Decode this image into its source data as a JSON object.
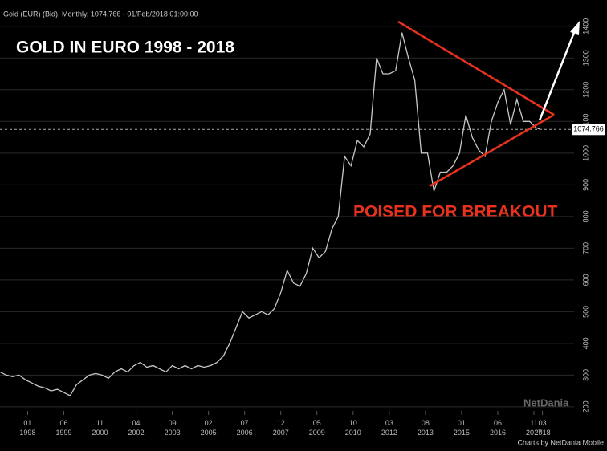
{
  "header": "Gold (EUR) (Bid), Monthly, 1074.766 - 01/Feb/2018 01:00:00",
  "chart_data": {
    "type": "line",
    "title": "GOLD IN EURO 1998 - 2018",
    "annotation": "POISED FOR BREAKOUT",
    "x": [
      "1996-12",
      "1997-03",
      "1997-06",
      "1997-09",
      "1997-12",
      "1998-03",
      "1998-06",
      "1998-09",
      "1998-12",
      "1999-03",
      "1999-06",
      "1999-09",
      "1999-12",
      "2000-03",
      "2000-06",
      "2000-09",
      "2000-12",
      "2001-03",
      "2001-06",
      "2001-09",
      "2001-12",
      "2002-03",
      "2002-06",
      "2002-09",
      "2002-12",
      "2003-03",
      "2003-06",
      "2003-09",
      "2003-12",
      "2004-03",
      "2004-06",
      "2004-09",
      "2004-12",
      "2005-03",
      "2005-06",
      "2005-09",
      "2005-12",
      "2006-03",
      "2006-06",
      "2006-09",
      "2006-12",
      "2007-03",
      "2007-06",
      "2007-09",
      "2007-12",
      "2008-03",
      "2008-06",
      "2008-09",
      "2008-12",
      "2009-03",
      "2009-06",
      "2009-09",
      "2009-12",
      "2010-03",
      "2010-06",
      "2010-09",
      "2010-12",
      "2011-03",
      "2011-06",
      "2011-09",
      "2011-12",
      "2012-03",
      "2012-06",
      "2012-09",
      "2012-12",
      "2013-03",
      "2013-06",
      "2013-09",
      "2013-12",
      "2014-03",
      "2014-06",
      "2014-09",
      "2014-12",
      "2015-03",
      "2015-06",
      "2015-09",
      "2015-12",
      "2016-03",
      "2016-06",
      "2016-09",
      "2016-12",
      "2017-03",
      "2017-06",
      "2017-09",
      "2017-12",
      "2018-02"
    ],
    "series": [
      {
        "name": "Gold (EUR)",
        "color": "#c8c8c8",
        "values": [
          310,
          300,
          295,
          300,
          285,
          275,
          265,
          260,
          250,
          255,
          245,
          235,
          270,
          285,
          300,
          305,
          300,
          290,
          310,
          320,
          310,
          330,
          340,
          325,
          330,
          320,
          310,
          330,
          320,
          330,
          320,
          330,
          325,
          330,
          340,
          360,
          400,
          450,
          500,
          480,
          490,
          500,
          490,
          510,
          560,
          630,
          590,
          580,
          620,
          700,
          670,
          690,
          760,
          800,
          990,
          960,
          1040,
          1020,
          1060,
          1300,
          1250,
          1250,
          1260,
          1380,
          1300,
          1230,
          1000,
          1000,
          880,
          940,
          940,
          960,
          1000,
          1120,
          1050,
          1010,
          990,
          1100,
          1160,
          1200,
          1090,
          1170,
          1100,
          1100,
          1080,
          1075
        ]
      }
    ],
    "last_value": 1074.766,
    "xlim": [
      "1996-12",
      "2019-07"
    ],
    "xticks": [
      {
        "value": "1998-01",
        "label": "01 1998"
      },
      {
        "value": "1999-06",
        "label": "06 1999"
      },
      {
        "value": "2000-11",
        "label": "11 2000"
      },
      {
        "value": "2002-04",
        "label": "04 2002"
      },
      {
        "value": "2003-09",
        "label": "09 2003"
      },
      {
        "value": "2005-02",
        "label": "02 2005"
      },
      {
        "value": "2006-07",
        "label": "07 2006"
      },
      {
        "value": "2007-12",
        "label": "12 2007"
      },
      {
        "value": "2009-05",
        "label": "05 2009"
      },
      {
        "value": "2010-10",
        "label": "10 2010"
      },
      {
        "value": "2012-03",
        "label": "03 2012"
      },
      {
        "value": "2013-08",
        "label": "08 2013"
      },
      {
        "value": "2015-01",
        "label": "01 2015"
      },
      {
        "value": "2016-06",
        "label": "06 2016"
      },
      {
        "value": "2017-11",
        "label": "11 2017"
      },
      {
        "value": "2018-03",
        "label": "03 2018"
      }
    ],
    "ylim": [
      187,
      1483
    ],
    "yticks": [
      200,
      300,
      400,
      500,
      600,
      700,
      800,
      900,
      1000,
      1100,
      1200,
      1300,
      1400
    ],
    "grid": true
  },
  "watermark": "NetDania",
  "footer": "Charts by NetDania Mobile"
}
